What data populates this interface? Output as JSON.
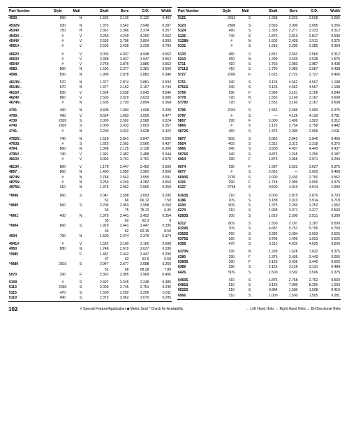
{
  "headers": [
    "Part Number",
    "Style",
    "Matl",
    "Shaft",
    "Bore",
    "O.D.",
    "Width"
  ],
  "footer": {
    "page": "102",
    "left": "# Special Feature/Application   ◆ Metric Seal   * Check for Availability",
    "right": "← Left Hand Helix   → Right Hand Helix   ↔ Bi-Directional Helix"
  },
  "left_groups": [
    [
      [
        "4530←",
        "",
        "960",
        "N",
        "1.502",
        "2.126",
        "2.132",
        "0.492"
      ]
    ],
    [
      [
        "4532N",
        "",
        "930",
        "N",
        "1.375",
        "3.542",
        "3.549",
        "0.397"
      ],
      [
        "4534V",
        "",
        "750",
        "H",
        "2.367",
        "3.366",
        "3.374",
        "0.257"
      ],
      [
        "4543V→",
        "",
        "#",
        "V",
        "3.250",
        "4.249",
        "4.260",
        "0.662"
      ],
      [
        "4544V",
        "",
        "#",
        "V",
        "2.503",
        "3.796",
        "3.804",
        "0.393"
      ],
      [
        "4561V←",
        "",
        "#",
        "V",
        "2.503",
        "3.428",
        "3.239",
        "0.709"
      ]
    ],
    [
      [
        "4562V→",
        "",
        "#",
        "V",
        "3.003",
        "4.937",
        "4.948",
        "0.662"
      ],
      [
        "4563V",
        "",
        "#",
        "V",
        "2.938",
        "3.937",
        "3.947",
        "0.552"
      ],
      [
        "4554V",
        "",
        "#",
        "V",
        "2.748",
        "3.876",
        "3.886",
        "0.552"
      ],
      [
        "4583←",
        "",
        "860",
        "N",
        "1.502",
        "2.377",
        "2.381",
        "0.500"
      ],
      [
        "4598←",
        "",
        "830",
        "N",
        "1.998",
        "2.878",
        "2.882",
        "0.340"
      ]
    ],
    [
      [
        "4613N↔",
        "",
        "570",
        "N",
        "1.377",
        "2.874",
        "2.881",
        "0.693"
      ],
      [
        "4614N↔",
        "",
        "570",
        "N",
        "1.377",
        "2.162",
        "2.167",
        "0.744"
      ],
      [
        "4615V↔",
        "",
        "830",
        "V",
        "1.654",
        "2.638",
        "2.643",
        "0.546"
      ],
      [
        "4624V",
        "",
        "860",
        "V",
        "2.503",
        "3.629",
        "3.633",
        "0.900"
      ],
      [
        "4674N←",
        "",
        "#",
        "N",
        "1.605",
        "2.793",
        "2.804",
        "0.364"
      ]
    ],
    [
      [
        "4701",
        "",
        "490",
        "N",
        "0.408",
        "1.004",
        "1.008",
        "0.208"
      ],
      [
        "4709←",
        "",
        "490",
        "V",
        "0.624",
        "1.003",
        "1.005",
        "0.477"
      ],
      [
        "4739",
        "",
        "2820",
        "S",
        "2.000",
        "2.562",
        "2.568",
        "0.224"
      ],
      [
        "4740",
        "",
        "2820",
        "S",
        "2.000",
        "3.033",
        "3.003",
        "0.357"
      ],
      [
        "4741←",
        "",
        "#",
        "N",
        "2.200",
        "3.022",
        "3.028",
        "0.422"
      ]
    ],
    [
      [
        "4762N↔",
        "",
        "740",
        "N",
        "1.618",
        "2.841",
        "2.847",
        "0.500"
      ],
      [
        "4763S",
        "",
        "#",
        "S",
        "1.625",
        "2.562",
        "2.566",
        "0.437"
      ],
      [
        "4764←",
        "",
        "860",
        "N",
        "1.398",
        "2.125",
        "2.128",
        "0.300"
      ],
      [
        "4795V↔",
        "",
        "740",
        "V",
        "1.391",
        "2.482",
        "2.488",
        "0.344"
      ],
      [
        "4810V→",
        "",
        "#",
        "V",
        "3.003",
        "3.751",
        "3.761",
        "0.570"
      ]
    ],
    [
      [
        "4813V→",
        "",
        "860",
        "V",
        "1.178",
        "2.447",
        "2.452",
        "0.500"
      ],
      [
        "4857→",
        "",
        "860",
        "N",
        "1.400",
        "2.950",
        "2.960",
        "0.560"
      ],
      [
        "4874N",
        "",
        "#",
        "N",
        "2.748",
        "3.543",
        "3.555",
        "0.591"
      ],
      [
        "4875N→",
        "",
        "#",
        "N",
        "3.250",
        "4.249",
        "4.282",
        "0.650"
      ],
      [
        "4875N←",
        "",
        "310",
        "N",
        "1.375",
        "2.062",
        "2.066",
        "0.250"
      ]
    ],
    [
      [
        "*4898",
        "",
        "660",
        "S",
        "2.047",
        "2.598",
        "2.603",
        "0.295"
      ],
      [
        "",
        "",
        "",
        "",
        "52",
        "66",
        "66.12",
        "7.50"
      ],
      [
        "*4899",
        "",
        "660",
        "S",
        "2.205",
        "2.953",
        "2.958",
        "0.250"
      ],
      [
        "",
        "",
        "",
        "",
        "56",
        "75",
        "75.12",
        "6.35"
      ],
      [
        "*4901",
        "",
        "400",
        "N",
        "1.378",
        "2.441",
        "2.452",
        "0.354"
      ],
      [
        "",
        "",
        "",
        "",
        "35",
        "62",
        "62.3",
        "9"
      ],
      [
        "*4904",
        "",
        "660",
        "S",
        "1.929",
        "2.441",
        "2.447",
        "0.335"
      ],
      [
        "",
        "",
        "",
        "",
        "49",
        "62",
        "62.15",
        "8.50"
      ],
      [
        "4934",
        "",
        "790",
        "N",
        "1.503",
        "2.374",
        "2.379",
        "0.374"
      ]
    ],
    [
      [
        "4941V",
        "",
        "#",
        "V",
        "1.552",
        "3.160",
        "3.165",
        "0.608"
      ],
      [
        "4950",
        "",
        "880",
        "N",
        "1.748",
        "2.619",
        "2.627",
        "0.330"
      ],
      [
        "*4985",
        "",
        "",
        "F",
        "1.437",
        "2.442",
        "2.447",
        "0.290"
      ],
      [
        "",
        "",
        "",
        "",
        "37",
        "62",
        "62.6",
        "5.50"
      ],
      [
        "*4989",
        "",
        "2810",
        "S",
        "2.047",
        "2.677",
        "2.688",
        "0.266"
      ],
      [
        "",
        "",
        "",
        "",
        "52",
        "68",
        "68.28",
        "7.80"
      ],
      [
        "5070",
        "",
        "290",
        "F",
        "2.362",
        "2.965",
        "2.969",
        "0.406"
      ]
    ],
    [
      [
        "5109",
        "",
        "#",
        "S",
        "2.497",
        "3.245",
        "3.248",
        "0.485"
      ],
      [
        "5113",
        "",
        "2030",
        "S",
        "2.000",
        "2.745",
        "2.751",
        "0.240"
      ],
      [
        "5115",
        "",
        "470",
        "S",
        "1.500",
        "2.250",
        "2.256",
        "0.311"
      ],
      [
        "5119",
        "",
        "490",
        "S",
        "2.375",
        "3.062",
        "3.070",
        "0.295"
      ]
    ]
  ],
  "right_groups": [
    [
      [
        "5121",
        "",
        "2810",
        "S",
        "1.938",
        "2.622",
        "2.628",
        "0.266"
      ]
    ],
    [
      [
        "5123",
        "",
        "2800",
        "S",
        "2.560",
        "3.090",
        "3.095",
        "0.256"
      ],
      [
        "5124",
        "",
        "480",
        "S",
        "1.328",
        "2.277",
        "2.233",
        "0.312"
      ],
      [
        "5126→",
        "",
        "740",
        "S",
        "1.875",
        "2.813",
        "2.817",
        "0.500"
      ],
      [
        "5128N",
        "",
        "#",
        "N",
        "1.502",
        "2.439",
        "2.511",
        "0.375"
      ],
      [
        "5131",
        "",
        "#",
        "S",
        "1.318",
        "2.280",
        "2.285",
        "0.354"
      ]
    ],
    [
      [
        "5133",
        "",
        "480",
        "V",
        "1.812",
        "2.562",
        "2.566",
        "0.312"
      ],
      [
        "5210",
        "",
        "350",
        "N",
        "1.299",
        "3.539",
        "3.528",
        "1.575"
      ],
      [
        "5711",
        "",
        "410",
        "S",
        "1.750",
        "2.983",
        "2.987",
        "0.438"
      ],
      [
        "5711S",
        "",
        "410",
        "S",
        "1.750",
        "2.983",
        "2.987",
        "0.438"
      ],
      [
        "5727",
        "",
        "2050",
        "F",
        "1.625",
        "2.722",
        "2.727",
        "0.406"
      ]
    ],
    [
      [
        "5751",
        "",
        "340",
        "S",
        "3.125",
        "4.562",
        "4.567",
        "1.198"
      ],
      [
        "5751S",
        "",
        "340",
        "S",
        "3.125",
        "4.562",
        "4.567",
        "1.198"
      ],
      [
        "5756",
        "",
        "290",
        "F",
        "2.999",
        "3.151",
        "3.156",
        "0.240"
      ],
      [
        "5778",
        "",
        "720",
        "N",
        "1.552",
        "3.160",
        "3.167",
        "0.608"
      ],
      [
        "5778V",
        "",
        "720",
        "V",
        "1.552",
        "3.160",
        "3.167",
        "0.608"
      ]
    ],
    [
      [
        "5796",
        "",
        "2010",
        "S",
        "1.562",
        "2.686",
        "2.690",
        "0.375"
      ],
      [
        "5797",
        "",
        "#",
        "S",
        "—",
        "4.126",
        "4.130",
        "0.781"
      ],
      [
        "5857",
        "",
        "290",
        "F",
        "1.000",
        "1.499",
        "1.503",
        "0.312"
      ],
      [
        "5865",
        "",
        "#",
        "S",
        "2.125",
        "2.754",
        "2.758",
        "0.442"
      ],
      [
        "5872S",
        "",
        "450",
        "S",
        "1.375",
        "2.000",
        "2.006",
        "0.311"
      ]
    ],
    [
      [
        "5877",
        "",
        "50S",
        "S",
        "2.062",
        "2.842",
        "2.846",
        "0.450"
      ],
      [
        "5924",
        "",
        "40S",
        "S",
        "2.312",
        "3.313",
        "3.318",
        "0.375"
      ],
      [
        "5965",
        "",
        "340",
        "S",
        "3.500",
        "4.437",
        "4.443",
        "0.437"
      ],
      [
        "5976S",
        "",
        "340",
        "S",
        "0.875",
        "1.245",
        "1.256",
        "0.187"
      ],
      [
        "6064",
        "",
        "290",
        "F",
        "1.875",
        "2.965",
        "2.971",
        "0.234"
      ]
    ],
    [
      [
        "6074",
        "",
        "290",
        "F",
        "1.937",
        "3.622",
        "3.627",
        "0.375"
      ],
      [
        "6077",
        "",
        "#",
        "S",
        "2.062",
        "—",
        "2.093",
        "0.468"
      ],
      [
        "6090S",
        "",
        "2730",
        "S",
        "2.000",
        "2.630",
        "2.750",
        "0.562"
      ],
      [
        "6101",
        "",
        "290",
        "F",
        "1.718",
        "2.996",
        "3.000",
        "0.375"
      ],
      [
        "6127",
        "",
        "2748",
        "S",
        "0.500",
        "4.010",
        "4.014",
        "1.000"
      ]
    ],
    [
      [
        "6163S",
        "",
        "210",
        "S",
        "2.000",
        "2.875",
        "2.879",
        "0.703"
      ],
      [
        "6186",
        "",
        "10S",
        "S",
        "3.188",
        "3.910",
        "3.914",
        "0.718"
      ],
      [
        "6200",
        "",
        "90S",
        "S",
        "1.375",
        "2.250",
        "2.252",
        "1.062"
      ],
      [
        "6270",
        "",
        "310",
        "S",
        "1.938",
        "3.371",
        "3.377",
        "0.500"
      ],
      [
        "6283S",
        "",
        "200",
        "S",
        "1.610",
        "2.500",
        "2.531",
        "0.300"
      ]
    ],
    [
      [
        "6312",
        "",
        "80S",
        "S",
        "1.500",
        "2.187",
        "2.187",
        "0.500"
      ],
      [
        "6329S",
        "",
        "70S",
        "S",
        "4.687",
        "5.751",
        "5.756",
        "0.750"
      ],
      [
        "6365S",
        "",
        "260",
        "S",
        "2.282",
        "2.684",
        "2.693",
        "0.625"
      ],
      [
        "6375S",
        "",
        "920",
        "S",
        "0.796",
        "1.499",
        "1.503",
        "0.625"
      ],
      [
        "6358",
        "",
        "470",
        "S",
        "3.115",
        "4.620",
        "4.625",
        "0.500"
      ]
    ],
    [
      [
        "6370N",
        "",
        "330",
        "N",
        "1.299",
        "1.628",
        "1.632",
        "0.375"
      ],
      [
        "6380",
        "",
        "290",
        "F",
        "1.375",
        "3.436",
        "3.443",
        "0.266"
      ],
      [
        "6380S",
        "",
        "290",
        "F",
        "2.125",
        "3.436",
        "3.440",
        "0.625"
      ],
      [
        "6389",
        "",
        "290",
        "S",
        "2.125",
        "3.126",
        "3.131",
        "0.484"
      ],
      [
        "6426",
        "",
        "50S",
        "S",
        "1.500",
        "3.502",
        "3.506",
        "0.375"
      ]
    ],
    [
      [
        "6460S",
        "",
        "410",
        "S",
        "1.875",
        "2.758",
        "2.762",
        "0.500"
      ],
      [
        "6481S",
        "",
        "510",
        "S",
        "3.125",
        "7.000",
        "8.250",
        "1.003"
      ],
      [
        "6522S",
        "",
        "210",
        "S",
        "0.984",
        "1.500",
        "1.508",
        "0.410"
      ],
      [
        "6566",
        "",
        "310",
        "S",
        "1.000",
        "1.500",
        "1.505",
        "0.281"
      ]
    ]
  ]
}
